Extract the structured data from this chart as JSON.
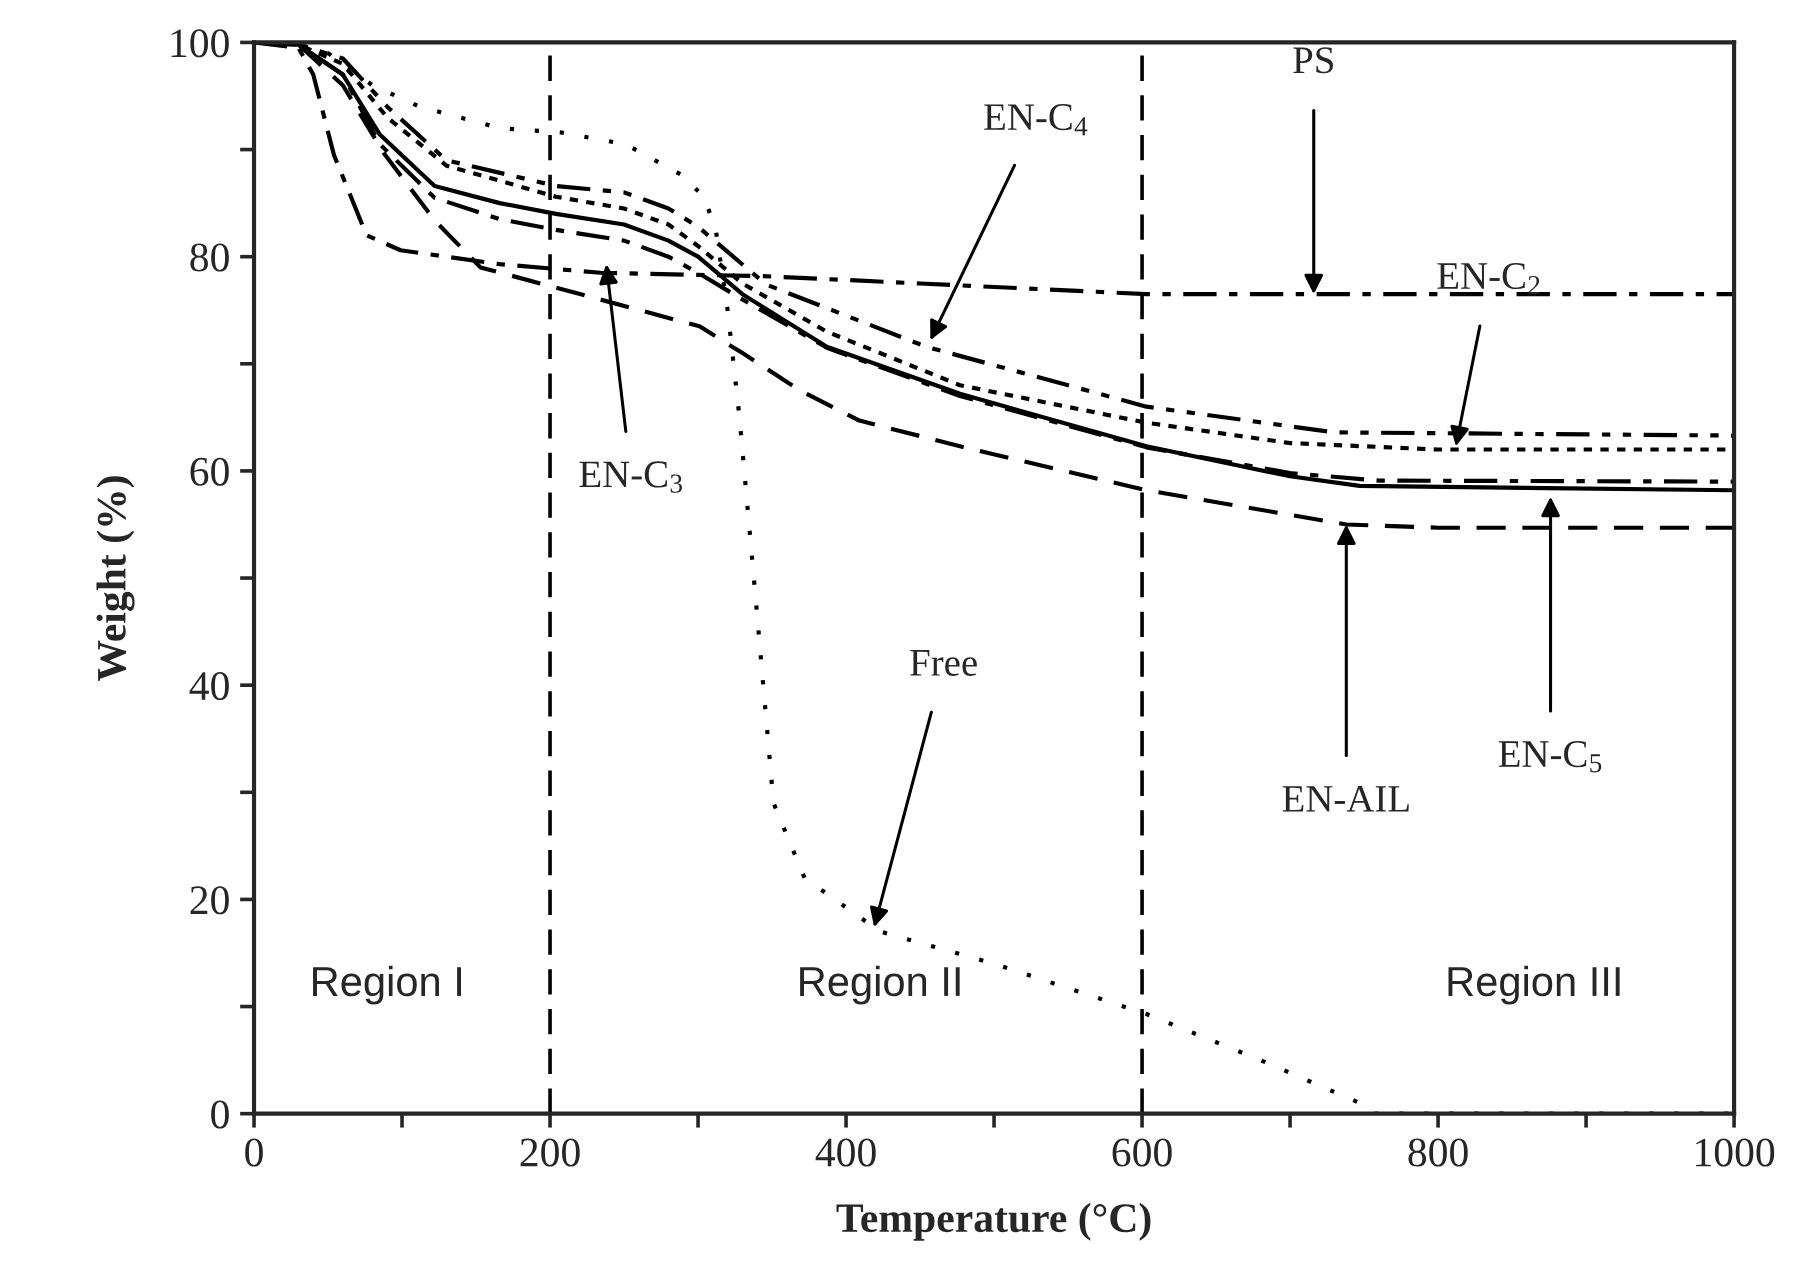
{
  "chart_data": {
    "type": "line",
    "xlabel": "Temperature (°C)",
    "ylabel": "Weight (%)",
    "xlim": [
      0,
      1000
    ],
    "ylim": [
      0,
      100
    ],
    "xticks": [
      0,
      {
        "value": 100,
        "label": null
      },
      200,
      {
        "value": 300,
        "label": null
      },
      400,
      {
        "value": 500,
        "label": null
      },
      600,
      {
        "value": 700,
        "label": null
      },
      800,
      {
        "value": 900,
        "label": null
      },
      1000
    ],
    "yticks": [
      0,
      {
        "value": 10,
        "label": null
      },
      20,
      {
        "value": 30,
        "label": null
      },
      40,
      {
        "value": 50,
        "label": null
      },
      60,
      {
        "value": 70,
        "label": null
      },
      80,
      {
        "value": 90,
        "label": null
      },
      100
    ],
    "grid": false,
    "legend": false,
    "series": [
      {
        "color": "#000000",
        "line_style": "dotted",
        "x": [
          0,
          30,
          50,
          80,
          112,
          166,
          207,
          251,
          288,
          304,
          312,
          320,
          328,
          339,
          351,
          372,
          423,
          500,
          603,
          680,
          747,
          757,
          1000
        ],
        "values": [
          100,
          99.8,
          99,
          96,
          94,
          92,
          91.6,
          90.5,
          87.7,
          85.6,
          82.5,
          75,
          65,
          48,
          29,
          22,
          17,
          14,
          9.3,
          5,
          1,
          0,
          0
        ]
      },
      {
        "color": "#000000",
        "line_style": "dashdot",
        "x": [
          0,
          30,
          40,
          54,
          76,
          99,
          130,
          166,
          234,
          300,
          342,
          450,
          603,
          1000
        ],
        "values": [
          100,
          99.5,
          97,
          89.5,
          82,
          80.6,
          80,
          79.3,
          78.5,
          78.3,
          78.2,
          77.5,
          76.5,
          76.5
        ]
      },
      {
        "color": "#000000",
        "line_style": "dashed",
        "x": [
          0,
          30,
          60,
          88,
          122,
          153,
          234,
          301,
          330,
          369,
          409,
          477,
          603,
          738,
          800,
          1000
        ],
        "values": [
          100,
          99.8,
          96,
          89.6,
          83.4,
          79,
          76,
          73.5,
          71,
          67.5,
          64.7,
          62.3,
          58.2,
          55,
          54.7,
          54.7
        ]
      },
      {
        "color": "#000000",
        "line_style": "solid",
        "x": [
          0,
          30,
          60,
          85,
          122,
          166,
          204,
          250,
          280,
          300,
          330,
          387,
          477,
          603,
          700,
          747,
          1000
        ],
        "values": [
          100,
          99.8,
          97,
          91.4,
          86.6,
          85,
          84,
          83,
          81.5,
          80,
          76.5,
          71.6,
          67.2,
          62.3,
          59.5,
          58.6,
          58.2
        ]
      },
      {
        "color": "#000000",
        "line_style": "dashdot",
        "x": [
          0,
          30,
          60,
          85,
          122,
          166,
          204,
          250,
          280,
          300,
          330,
          387,
          477,
          603,
          700,
          760,
          1000
        ],
        "values": [
          100,
          99.8,
          97,
          90.5,
          85.5,
          83.5,
          82.5,
          81.5,
          80,
          78.5,
          76,
          71.5,
          67,
          62.2,
          59.8,
          59.1,
          59
        ]
      },
      {
        "color": "#000000",
        "line_style": "densely_dotted",
        "x": [
          0,
          30,
          60,
          90,
          130,
          204,
          250,
          280,
          300,
          330,
          387,
          477,
          603,
          700,
          800,
          1000
        ],
        "values": [
          100,
          99.8,
          98,
          93,
          88.5,
          85.6,
          84.5,
          83,
          81,
          77.5,
          73,
          68,
          64.5,
          62.6,
          62,
          62
        ]
      },
      {
        "color": "#000000",
        "line_style": "dashdotdot",
        "x": [
          0,
          30,
          60,
          90,
          130,
          204,
          250,
          280,
          300,
          346,
          400,
          454,
          603,
          730,
          1000
        ],
        "values": [
          100,
          99.8,
          98.5,
          94,
          89,
          86.6,
          86,
          84.5,
          82.8,
          77.4,
          74.5,
          71.6,
          66,
          63.6,
          63.3
        ]
      }
    ],
    "ref_lines": [
      {
        "axis": "x",
        "value": 200,
        "line_style": "dashed",
        "color": "#000000"
      },
      {
        "axis": "x",
        "value": 600,
        "line_style": "dashed",
        "color": "#000000"
      }
    ],
    "annotations": [
      {
        "text": "EN-C$_{4}$",
        "x": 457,
        "y": 72.2
      },
      {
        "text": "PS",
        "x": 716,
        "y": 76.5
      },
      {
        "text": "EN-C$_{2}$",
        "x": 812,
        "y": 62.3
      },
      {
        "text": "EN-C$_{3}$",
        "x": 238,
        "y": 79.3
      },
      {
        "text": "Free",
        "x": 419,
        "y": 17.4
      },
      {
        "text": "EN-AIL",
        "x": 738,
        "y": 55
      },
      {
        "text": "EN-C$_{5}$",
        "x": 876,
        "y": 57.6
      },
      "Region I",
      "Region II",
      "Region III"
    ]
  }
}
